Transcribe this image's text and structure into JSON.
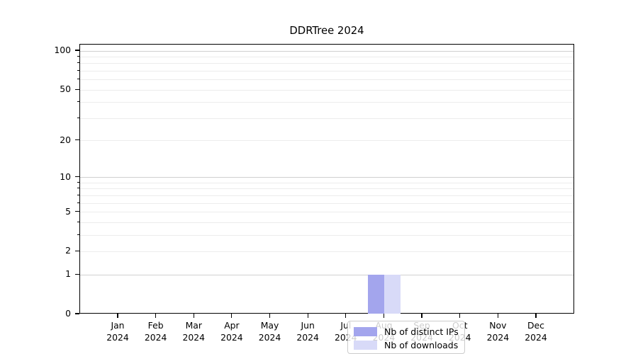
{
  "chart_data": {
    "type": "bar",
    "title": "DDRTree 2024",
    "categories": [
      "Jan",
      "Feb",
      "Mar",
      "Apr",
      "May",
      "Jun",
      "Jul",
      "Aug",
      "Sep",
      "Oct",
      "Nov",
      "Dec"
    ],
    "year_label": "2024",
    "series": [
      {
        "name": "Nb of distinct IPs",
        "color": "#a3a5ed",
        "values": [
          0,
          0,
          0,
          0,
          0,
          0,
          0,
          1,
          0,
          0,
          0,
          0
        ]
      },
      {
        "name": "Nb of downloads",
        "color": "#d8daf8",
        "values": [
          0,
          0,
          0,
          0,
          0,
          0,
          0,
          1,
          0,
          0,
          0,
          0
        ]
      }
    ],
    "y_tick_labels": [
      "0",
      "1",
      "2",
      "5",
      "10",
      "20",
      "50",
      "100"
    ],
    "y_tick_values": [
      0,
      1,
      2,
      5,
      10,
      20,
      50,
      100
    ],
    "grid_major_values": [
      1,
      10,
      100
    ],
    "grid_minor_values": [
      2,
      3,
      4,
      5,
      6,
      7,
      8,
      9,
      20,
      30,
      40,
      50,
      60,
      70,
      80,
      90
    ],
    "y_scale": "log10(1+v)",
    "ylim": [
      0,
      112
    ],
    "grid": "horizontal",
    "legend_position": "lower center",
    "colors": {
      "axis": "#000000",
      "grid_major": "#d0d0d0",
      "grid_minor": "#ececec",
      "legend_border": "#cccccc",
      "background": "#ffffff",
      "text": "#000000"
    }
  }
}
